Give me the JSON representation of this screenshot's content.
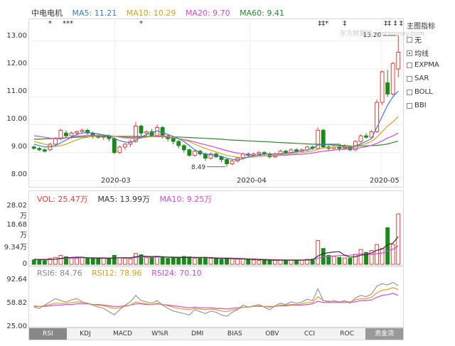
{
  "stock_name": "中电电机",
  "ma_legend": [
    {
      "label": "MA5: 11.21",
      "color": "#3b7bd6"
    },
    {
      "label": "MA10: 10.29",
      "color": "#e0a020"
    },
    {
      "label": "MA20: 9.70",
      "color": "#d34ad8"
    },
    {
      "label": "MA60: 9.41",
      "color": "#2a8a2a"
    }
  ],
  "main_y_ticks": [
    "13.00",
    "12.00",
    "11.00",
    "10.00",
    "9.00",
    "8.00"
  ],
  "x_ticks": [
    "2020-03",
    "2020-04",
    "2020-05"
  ],
  "annotations": {
    "high": "13.20",
    "low": "8.49",
    "event_marks": [
      "*",
      "**",
      "*",
      "*",
      "‡‡*",
      "‡",
      "‡‡",
      "‡ ‡"
    ]
  },
  "watermark": "东方财富网 eastmoney.com",
  "side_menu": {
    "title": "主图指标",
    "items": [
      {
        "label": "无",
        "checked": false
      },
      {
        "label": "均线",
        "checked": true
      },
      {
        "label": "EXPMA",
        "checked": false
      },
      {
        "label": "SAR",
        "checked": false
      },
      {
        "label": "BOLL",
        "checked": false
      },
      {
        "label": "BBI",
        "checked": false
      }
    ]
  },
  "vol_legend": [
    {
      "label": "VOL: 25.47万",
      "color": "#e0403a"
    },
    {
      "label": "MA5: 13.99万",
      "color": "#333333"
    },
    {
      "label": "MA10: 9.25万",
      "color": "#d34ad8"
    }
  ],
  "vol_y_ticks": [
    "28.02万",
    "18.68万",
    "9.34万",
    "0"
  ],
  "rsi_legend": [
    {
      "label": "RSI6: 84.76",
      "color": "#888888"
    },
    {
      "label": "RSI12: 78.96",
      "color": "#e0a020"
    },
    {
      "label": "RSI24: 70.10",
      "color": "#d34ad8"
    }
  ],
  "rsi_y_ticks": [
    "92.64",
    "58.82",
    "25.00"
  ],
  "tabs": [
    "RSI",
    "KDJ",
    "MACD",
    "W%R",
    "DMI",
    "BIAS",
    "OBV",
    "CCI",
    "ROC",
    "资金流"
  ],
  "chart_data": {
    "type": "candlestick",
    "ylim": [
      8.0,
      13.3
    ],
    "up_color": "#e0403a",
    "down_color": "#1a8a1a",
    "candles": [
      [
        9.2,
        9.15,
        9.25,
        9.1
      ],
      [
        9.15,
        9.1,
        9.2,
        9.05
      ],
      [
        9.1,
        9.05,
        9.15,
        9.0
      ],
      [
        9.1,
        9.3,
        9.35,
        9.05
      ],
      [
        9.3,
        9.5,
        9.55,
        9.25
      ],
      [
        9.5,
        9.8,
        9.85,
        9.45
      ],
      [
        9.7,
        9.6,
        9.8,
        9.55
      ],
      [
        9.6,
        9.7,
        9.75,
        9.5
      ],
      [
        9.7,
        9.75,
        9.8,
        9.6
      ],
      [
        9.75,
        9.8,
        9.85,
        9.7
      ],
      [
        9.8,
        9.7,
        9.85,
        9.65
      ],
      [
        9.7,
        9.6,
        9.75,
        9.5
      ],
      [
        9.6,
        9.55,
        9.65,
        9.5
      ],
      [
        9.55,
        9.6,
        9.65,
        9.45
      ],
      [
        9.6,
        9.5,
        9.65,
        9.4
      ],
      [
        9.5,
        9.0,
        9.55,
        8.95
      ],
      [
        9.0,
        9.2,
        9.25,
        8.95
      ],
      [
        9.2,
        9.3,
        9.35,
        9.1
      ],
      [
        9.3,
        9.4,
        9.45,
        9.2
      ],
      [
        9.4,
        9.95,
        10.1,
        9.35
      ],
      [
        9.95,
        9.7,
        10.0,
        9.6
      ],
      [
        9.7,
        9.75,
        9.8,
        9.6
      ],
      [
        9.75,
        9.6,
        9.85,
        9.55
      ],
      [
        9.6,
        9.9,
        10.0,
        9.55
      ],
      [
        9.9,
        9.6,
        9.95,
        9.5
      ],
      [
        9.6,
        9.5,
        9.65,
        9.4
      ],
      [
        9.5,
        9.4,
        9.55,
        9.3
      ],
      [
        9.4,
        9.25,
        9.45,
        9.15
      ],
      [
        9.25,
        9.1,
        9.3,
        9.0
      ],
      [
        9.1,
        8.9,
        9.15,
        8.85
      ],
      [
        8.9,
        9.05,
        9.1,
        8.85
      ],
      [
        9.05,
        8.95,
        9.1,
        8.9
      ],
      [
        8.95,
        8.8,
        9.0,
        8.7
      ],
      [
        8.8,
        8.95,
        9.0,
        8.75
      ],
      [
        8.95,
        8.85,
        9.0,
        8.8
      ],
      [
        8.85,
        8.75,
        8.9,
        8.65
      ],
      [
        8.75,
        8.6,
        8.8,
        8.49
      ],
      [
        8.6,
        8.7,
        8.75,
        8.55
      ],
      [
        8.7,
        8.8,
        8.85,
        8.65
      ],
      [
        8.8,
        8.95,
        9.0,
        8.75
      ],
      [
        8.95,
        8.9,
        9.0,
        8.85
      ],
      [
        8.9,
        8.95,
        9.0,
        8.85
      ],
      [
        8.95,
        9.0,
        9.05,
        8.9
      ],
      [
        9.0,
        8.95,
        9.05,
        8.9
      ],
      [
        8.95,
        8.85,
        9.0,
        8.8
      ],
      [
        8.85,
        8.95,
        9.0,
        8.8
      ],
      [
        8.95,
        9.05,
        9.1,
        8.9
      ],
      [
        9.05,
        9.0,
        9.1,
        8.95
      ],
      [
        9.0,
        9.1,
        9.15,
        8.95
      ],
      [
        9.1,
        9.05,
        9.15,
        9.0
      ],
      [
        9.05,
        9.1,
        9.15,
        9.0
      ],
      [
        9.1,
        9.2,
        9.25,
        9.05
      ],
      [
        9.2,
        9.15,
        9.25,
        9.1
      ],
      [
        9.15,
        9.8,
        9.9,
        9.1
      ],
      [
        9.8,
        9.2,
        9.85,
        9.15
      ],
      [
        9.2,
        9.15,
        9.25,
        9.05
      ],
      [
        9.15,
        9.2,
        9.25,
        9.1
      ],
      [
        9.2,
        9.15,
        9.25,
        9.05
      ],
      [
        9.15,
        9.2,
        9.3,
        9.1
      ],
      [
        9.2,
        9.1,
        9.25,
        9.05
      ],
      [
        9.1,
        9.4,
        9.45,
        9.05
      ],
      [
        9.4,
        9.6,
        9.65,
        9.35
      ],
      [
        9.6,
        9.55,
        9.7,
        9.5
      ],
      [
        9.55,
        9.75,
        9.8,
        9.5
      ],
      [
        9.75,
        10.8,
        10.9,
        9.7
      ],
      [
        10.8,
        11.9,
        11.95,
        10.7
      ],
      [
        11.5,
        11.1,
        11.95,
        11.0
      ],
      [
        11.1,
        12.2,
        12.25,
        11.05
      ],
      [
        12.0,
        12.6,
        13.2,
        11.7
      ]
    ],
    "ma5": [
      9.3,
      9.25,
      9.2,
      9.2,
      9.25,
      9.35,
      9.45,
      9.55,
      9.65,
      9.7,
      9.72,
      9.7,
      9.67,
      9.63,
      9.6,
      9.5,
      9.43,
      9.38,
      9.35,
      9.45,
      9.55,
      9.65,
      9.7,
      9.78,
      9.72,
      9.65,
      9.58,
      9.5,
      9.4,
      9.25,
      9.1,
      9.0,
      8.95,
      8.92,
      8.9,
      8.86,
      8.8,
      8.76,
      8.74,
      8.78,
      8.84,
      8.88,
      8.92,
      8.95,
      8.95,
      8.95,
      8.96,
      8.98,
      9.0,
      9.03,
      9.06,
      9.1,
      9.14,
      9.27,
      9.3,
      9.3,
      9.3,
      9.3,
      9.18,
      9.17,
      9.22,
      9.32,
      9.4,
      9.5,
      9.9,
      10.3,
      10.7,
      11.0,
      11.21
    ],
    "ma10": [
      9.4,
      9.35,
      9.3,
      9.25,
      9.22,
      9.25,
      9.3,
      9.38,
      9.45,
      9.52,
      9.55,
      9.58,
      9.6,
      9.62,
      9.62,
      9.58,
      9.55,
      9.52,
      9.5,
      9.5,
      9.52,
      9.55,
      9.58,
      9.62,
      9.6,
      9.58,
      9.55,
      9.5,
      9.45,
      9.4,
      9.3,
      9.22,
      9.15,
      9.08,
      9.02,
      8.96,
      8.9,
      8.86,
      8.83,
      8.82,
      8.83,
      8.84,
      8.86,
      8.88,
      8.9,
      8.91,
      8.92,
      8.94,
      8.96,
      8.98,
      9.0,
      9.03,
      9.06,
      9.12,
      9.16,
      9.18,
      9.2,
      9.22,
      9.22,
      9.22,
      9.25,
      9.28,
      9.32,
      9.4,
      9.55,
      9.75,
      9.95,
      10.1,
      10.29
    ],
    "ma20": [
      9.6,
      9.58,
      9.55,
      9.52,
      9.5,
      9.5,
      9.52,
      9.55,
      9.58,
      9.6,
      9.62,
      9.62,
      9.62,
      9.62,
      9.6,
      9.58,
      9.56,
      9.55,
      9.54,
      9.54,
      9.55,
      9.56,
      9.57,
      9.58,
      9.57,
      9.55,
      9.53,
      9.5,
      9.47,
      9.43,
      9.38,
      9.33,
      9.28,
      9.23,
      9.18,
      9.12,
      9.07,
      9.02,
      8.98,
      8.95,
      8.93,
      8.91,
      8.9,
      8.89,
      8.89,
      8.89,
      8.9,
      8.91,
      8.92,
      8.93,
      8.94,
      8.96,
      8.98,
      9.02,
      9.05,
      9.07,
      9.09,
      9.11,
      9.12,
      9.13,
      9.15,
      9.18,
      9.21,
      9.26,
      9.33,
      9.42,
      9.52,
      9.6,
      9.7
    ],
    "ma60": [
      9.48,
      9.48,
      9.49,
      9.5,
      9.51,
      9.52,
      9.53,
      9.54,
      9.55,
      9.56,
      9.57,
      9.58,
      9.58,
      9.58,
      9.58,
      9.58,
      9.58,
      9.58,
      9.58,
      9.58,
      9.58,
      9.58,
      9.58,
      9.58,
      9.57,
      9.57,
      9.56,
      9.56,
      9.55,
      9.54,
      9.53,
      9.52,
      9.51,
      9.5,
      9.49,
      9.48,
      9.46,
      9.45,
      9.44,
      9.43,
      9.42,
      9.41,
      9.4,
      9.39,
      9.38,
      9.37,
      9.36,
      9.35,
      9.34,
      9.33,
      9.32,
      9.31,
      9.3,
      9.3,
      9.29,
      9.28,
      9.27,
      9.26,
      9.25,
      9.24,
      9.24,
      9.24,
      9.24,
      9.25,
      9.26,
      9.28,
      9.31,
      9.36,
      9.41
    ],
    "volume": [
      2.2,
      2.0,
      1.8,
      3.0,
      3.5,
      4.5,
      3.8,
      3.2,
      3.0,
      3.5,
      3.2,
      3.0,
      2.8,
      3.0,
      2.8,
      4.5,
      3.2,
      3.0,
      2.8,
      5.5,
      4.8,
      3.5,
      3.2,
      4.0,
      3.5,
      3.0,
      3.2,
      3.5,
      4.0,
      3.8,
      3.0,
      3.2,
      3.5,
      3.0,
      2.8,
      2.5,
      3.2,
      2.8,
      2.6,
      2.8,
      2.4,
      2.2,
      2.0,
      2.0,
      2.2,
      2.0,
      2.2,
      2.0,
      2.1,
      2.0,
      2.2,
      2.5,
      2.6,
      12.0,
      8.0,
      4.5,
      4.0,
      3.5,
      3.2,
      3.0,
      5.0,
      7.5,
      6.0,
      7.0,
      10.0,
      8.0,
      18.5,
      10.0,
      25.47
    ],
    "vol_ylim": [
      0,
      28.02
    ],
    "vol_ma5": [
      2.5,
      2.4,
      2.3,
      2.4,
      2.6,
      3.0,
      3.3,
      3.5,
      3.6,
      3.6,
      3.3,
      3.2,
      3.1,
      3.1,
      3.0,
      3.2,
      3.3,
      3.3,
      3.3,
      3.8,
      4.2,
      4.0,
      3.9,
      4.0,
      3.8,
      3.6,
      3.5,
      3.4,
      3.4,
      3.5,
      3.5,
      3.5,
      3.5,
      3.3,
      3.1,
      3.0,
      3.0,
      2.9,
      2.8,
      2.7,
      2.6,
      2.5,
      2.4,
      2.3,
      2.2,
      2.1,
      2.1,
      2.1,
      2.1,
      2.1,
      2.1,
      2.2,
      2.3,
      4.2,
      5.4,
      5.9,
      6.2,
      6.4,
      4.6,
      3.6,
      3.8,
      4.6,
      5.0,
      5.7,
      7.1,
      7.7,
      9.9,
      10.7,
      14.0
    ],
    "vol_ma10": [
      2.6,
      2.5,
      2.5,
      2.5,
      2.6,
      2.8,
      3.0,
      3.1,
      3.2,
      3.3,
      3.3,
      3.3,
      3.3,
      3.3,
      3.2,
      3.3,
      3.3,
      3.3,
      3.2,
      3.5,
      3.7,
      3.7,
      3.6,
      3.7,
      3.7,
      3.7,
      3.7,
      3.6,
      3.6,
      3.6,
      3.5,
      3.4,
      3.4,
      3.4,
      3.3,
      3.2,
      3.2,
      3.1,
      3.0,
      2.9,
      2.8,
      2.7,
      2.6,
      2.5,
      2.4,
      2.3,
      2.3,
      2.2,
      2.2,
      2.2,
      2.2,
      2.2,
      2.3,
      3.1,
      3.7,
      4.0,
      4.2,
      4.4,
      4.5,
      4.6,
      4.9,
      5.2,
      5.3,
      5.0,
      5.4,
      5.6,
      6.8,
      7.6,
      9.25
    ],
    "rsi_ylim": [
      25.0,
      92.64
    ],
    "rsi6": [
      52,
      50,
      55,
      60,
      65,
      62,
      60,
      63,
      65,
      60,
      58,
      55,
      52,
      50,
      45,
      40,
      48,
      55,
      60,
      70,
      62,
      60,
      58,
      62,
      55,
      50,
      46,
      44,
      42,
      40,
      48,
      45,
      42,
      46,
      44,
      40,
      38,
      44,
      48,
      55,
      52,
      54,
      56,
      52,
      48,
      54,
      58,
      56,
      60,
      58,
      60,
      64,
      62,
      80,
      62,
      60,
      62,
      60,
      62,
      58,
      66,
      70,
      68,
      72,
      84,
      88,
      86,
      90,
      84.76
    ],
    "rsi12": [
      54,
      53,
      54,
      56,
      58,
      58,
      58,
      59,
      60,
      59,
      58,
      56,
      55,
      54,
      52,
      50,
      51,
      53,
      55,
      60,
      58,
      57,
      56,
      58,
      56,
      54,
      52,
      50,
      49,
      48,
      50,
      49,
      48,
      49,
      48,
      46,
      45,
      47,
      49,
      52,
      52,
      53,
      54,
      53,
      52,
      53,
      55,
      55,
      56,
      56,
      57,
      59,
      59,
      68,
      62,
      61,
      61,
      60,
      61,
      60,
      63,
      65,
      65,
      67,
      74,
      78,
      79,
      82,
      78.96
    ],
    "rsi24": [
      53,
      53,
      53,
      54,
      55,
      55,
      56,
      56,
      57,
      57,
      57,
      56,
      56,
      55,
      54,
      53,
      53,
      54,
      55,
      57,
      57,
      56,
      56,
      57,
      56,
      55,
      54,
      53,
      52,
      51,
      52,
      51,
      51,
      51,
      50,
      50,
      49,
      50,
      51,
      52,
      52,
      53,
      53,
      53,
      53,
      53,
      54,
      54,
      55,
      55,
      55,
      56,
      57,
      61,
      59,
      59,
      59,
      59,
      59,
      59,
      60,
      62,
      62,
      63,
      67,
      70,
      71,
      73,
      70.1
    ]
  }
}
